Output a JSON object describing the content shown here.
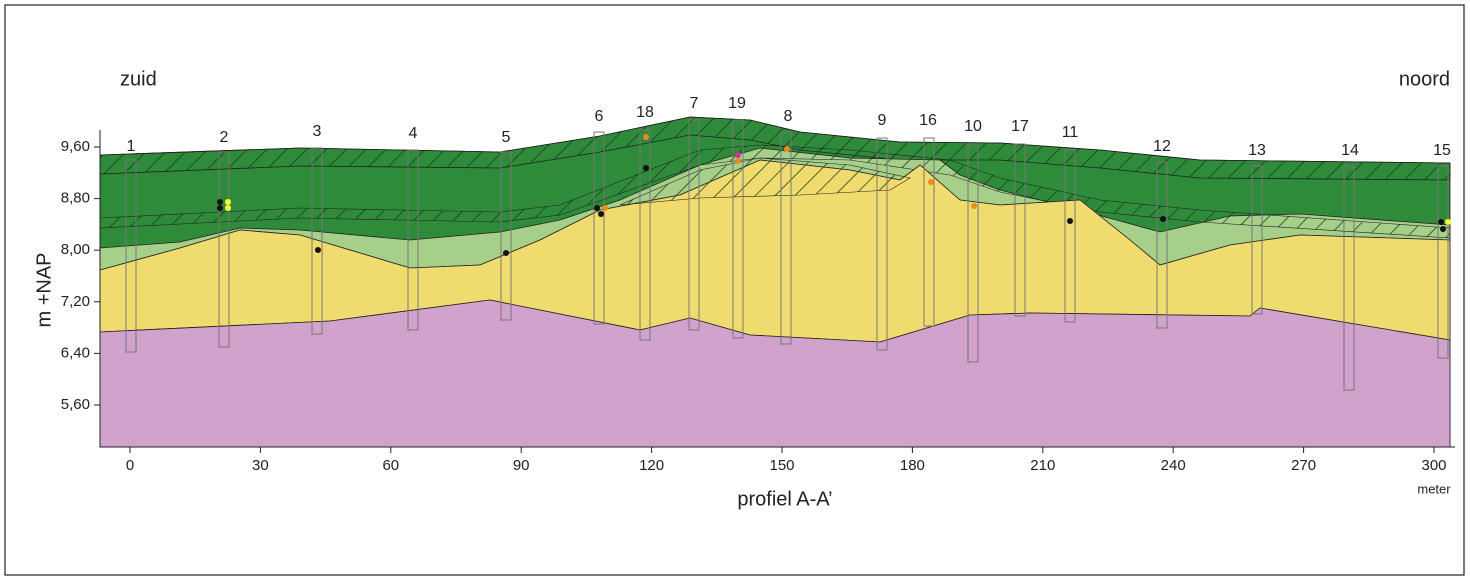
{
  "header": {
    "left": "zuid",
    "right": "noord"
  },
  "y_axis": {
    "title": "m +NAP",
    "ticks": [
      "9,60",
      "8,80",
      "8,00",
      "7,20",
      "6,40",
      "5,60"
    ]
  },
  "x_axis": {
    "title": "profiel A-A’",
    "unit": "meter",
    "ticks": [
      "0",
      "30",
      "60",
      "90",
      "120",
      "150",
      "180",
      "210",
      "240",
      "270",
      "300"
    ]
  },
  "boreholes": [
    "1",
    "2",
    "3",
    "4",
    "5",
    "6",
    "18",
    "7",
    "19",
    "8",
    "9",
    "16",
    "10",
    "17",
    "11",
    "12",
    "13",
    "14",
    "15"
  ]
}
